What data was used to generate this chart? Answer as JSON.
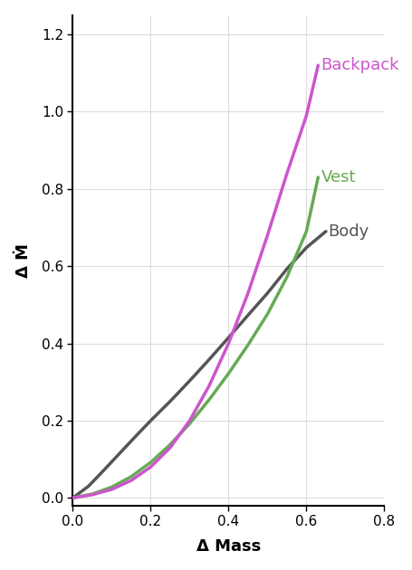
{
  "title": "",
  "xlabel": "Δ Mass",
  "ylabel": "Δ Ṁ",
  "xlim": [
    0.0,
    0.8
  ],
  "ylim": [
    -0.02,
    1.25
  ],
  "xticks": [
    0.0,
    0.2,
    0.4,
    0.6,
    0.8
  ],
  "yticks": [
    0.0,
    0.2,
    0.4,
    0.6,
    0.8,
    1.0,
    1.2
  ],
  "background_color": "#ffffff",
  "grid_color": "#dddddd",
  "backpack_color": "#cc55cc",
  "vest_color": "#66aa55",
  "body_color": "#555555",
  "backpack_label": "Backpack",
  "vest_label": "Vest",
  "body_label": "Body",
  "backpack_x": [
    0.0,
    0.05,
    0.1,
    0.15,
    0.2,
    0.25,
    0.3,
    0.35,
    0.4,
    0.45,
    0.5,
    0.55,
    0.6,
    0.63
  ],
  "backpack_y": [
    0.0,
    0.008,
    0.022,
    0.045,
    0.08,
    0.13,
    0.2,
    0.29,
    0.4,
    0.53,
    0.68,
    0.84,
    0.99,
    1.12
  ],
  "vest_x": [
    0.0,
    0.05,
    0.1,
    0.15,
    0.2,
    0.25,
    0.3,
    0.35,
    0.4,
    0.45,
    0.5,
    0.55,
    0.6,
    0.63
  ],
  "vest_y": [
    0.0,
    0.01,
    0.028,
    0.055,
    0.092,
    0.138,
    0.192,
    0.254,
    0.322,
    0.396,
    0.476,
    0.572,
    0.69,
    0.83
  ],
  "body_x": [
    0.0,
    0.04,
    0.08,
    0.12,
    0.16,
    0.2,
    0.25,
    0.3,
    0.35,
    0.4,
    0.45,
    0.5,
    0.55,
    0.6,
    0.65
  ],
  "body_y": [
    0.0,
    0.03,
    0.072,
    0.115,
    0.158,
    0.2,
    0.25,
    0.303,
    0.358,
    0.415,
    0.473,
    0.53,
    0.593,
    0.648,
    0.69
  ],
  "line_width": 2.5,
  "label_fontsize": 13,
  "tick_fontsize": 11,
  "annotation_fontsize": 13
}
